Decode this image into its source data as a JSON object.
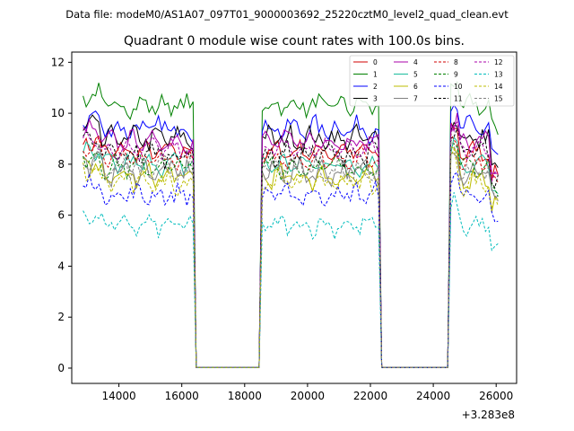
{
  "figure": {
    "suptitle": "Data file: modeM0/AS1A07_097T01_9000003692_25220cztM0_level2_quad_clean.evt",
    "offset_label": "+3.283e8"
  },
  "chart_data": {
    "type": "line",
    "title": "Quadrant 0 module wise count rates with 100.0s bins.",
    "xlabel": "",
    "ylabel": "",
    "x_offset": 328300000,
    "xlim": [
      12500,
      26650
    ],
    "ylim": [
      -0.6,
      12.4
    ],
    "xticks": [
      14000,
      16000,
      18000,
      20000,
      22000,
      24000,
      26000
    ],
    "yticks": [
      0,
      2,
      4,
      6,
      8,
      10,
      12
    ],
    "xtick_labels": [
      "14000",
      "16000",
      "18000",
      "20000",
      "22000",
      "24000",
      "26000"
    ],
    "ytick_labels": [
      "0",
      "2",
      "4",
      "6",
      "8",
      "10",
      "12"
    ],
    "grid": false,
    "legend_position": "top-right",
    "legend_columns": 4,
    "segments": [
      {
        "x_start": 12860,
        "x_end": 16360,
        "drop_to": 16460
      },
      {
        "x_start": 18560,
        "x_end": 22260,
        "rise_from": 18460,
        "drop_to": 22360
      },
      {
        "x_start": 24560,
        "x_end": 26060,
        "rise_from": 24460
      }
    ],
    "gap_value": 0.02,
    "series": [
      {
        "name": "0",
        "color": "#d00000",
        "dash": "solid",
        "level": 8.5
      },
      {
        "name": "1",
        "color": "#008000",
        "dash": "solid",
        "level": 10.3
      },
      {
        "name": "2",
        "color": "#0000ff",
        "dash": "solid",
        "level": 9.4
      },
      {
        "name": "3",
        "color": "#000000",
        "dash": "solid",
        "level": 9.0
      },
      {
        "name": "4",
        "color": "#aa00aa",
        "dash": "solid",
        "level": 8.9
      },
      {
        "name": "5",
        "color": "#1abc9c",
        "dash": "solid",
        "level": 8.0
      },
      {
        "name": "6",
        "color": "#bcbc00",
        "dash": "solid",
        "level": 7.5
      },
      {
        "name": "7",
        "color": "#808080",
        "dash": "solid",
        "level": 7.7
      },
      {
        "name": "8",
        "color": "#d00000",
        "dash": "dashed",
        "level": 8.2
      },
      {
        "name": "9",
        "color": "#008000",
        "dash": "dashed",
        "level": 7.9
      },
      {
        "name": "10",
        "color": "#0000ff",
        "dash": "dashed",
        "level": 6.8
      },
      {
        "name": "11",
        "color": "#000000",
        "dash": "dashed",
        "level": 8.4
      },
      {
        "name": "12",
        "color": "#aa00aa",
        "dash": "dashed",
        "level": 8.6
      },
      {
        "name": "13",
        "color": "#00bcbc",
        "dash": "dashed",
        "level": 5.6
      },
      {
        "name": "14",
        "color": "#bcbc00",
        "dash": "dashed",
        "level": 7.3
      },
      {
        "name": "15",
        "color": "#808080",
        "dash": "dashed",
        "level": 7.8
      }
    ]
  }
}
